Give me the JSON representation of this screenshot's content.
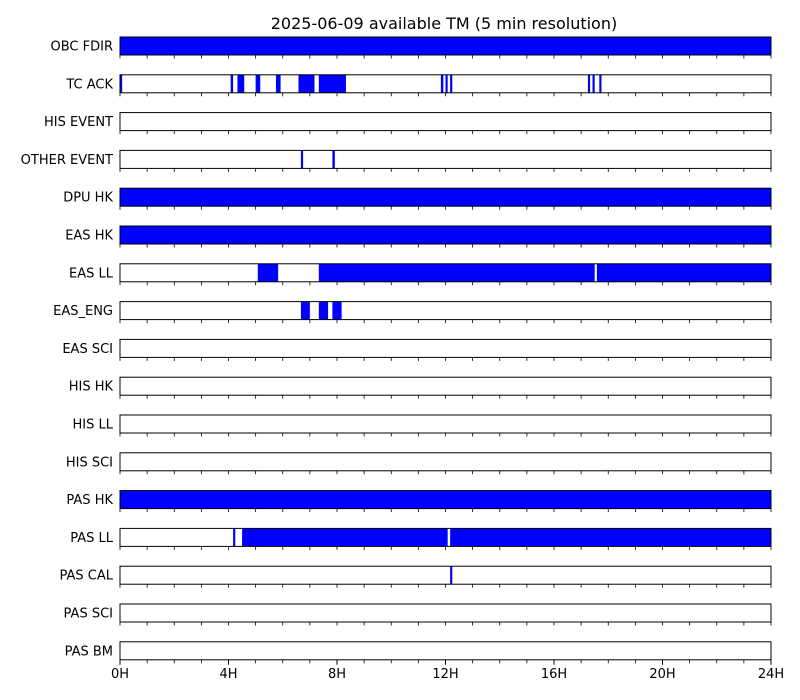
{
  "chart_data": {
    "type": "timeline",
    "title": "2025-06-09 available TM (5 min resolution)",
    "x_unit": "hours",
    "xlim": [
      0,
      24
    ],
    "x_ticks": [
      0,
      4,
      8,
      12,
      16,
      20,
      24
    ],
    "x_tick_labels": [
      "0H",
      "4H",
      "8H",
      "12H",
      "16H",
      "20H",
      "24H"
    ],
    "minor_tick_step_hours": 1,
    "fill_color": "#0000ff",
    "rows": [
      {
        "label": "OBC FDIR",
        "intervals": [
          [
            0,
            24
          ]
        ]
      },
      {
        "label": "TC ACK",
        "intervals": [
          [
            0,
            0.08
          ],
          [
            4.08,
            4.17
          ],
          [
            4.33,
            4.58
          ],
          [
            5.0,
            5.17
          ],
          [
            5.75,
            5.92
          ],
          [
            6.58,
            7.17
          ],
          [
            7.33,
            8.33
          ],
          [
            11.83,
            11.92
          ],
          [
            12.0,
            12.08
          ],
          [
            12.17,
            12.25
          ],
          [
            17.25,
            17.33
          ],
          [
            17.42,
            17.5
          ],
          [
            17.67,
            17.75
          ]
        ]
      },
      {
        "label": "HIS EVENT",
        "intervals": []
      },
      {
        "label": "OTHER EVENT",
        "intervals": [
          [
            6.67,
            6.75
          ],
          [
            7.83,
            7.92
          ]
        ]
      },
      {
        "label": "DPU HK",
        "intervals": [
          [
            0,
            24
          ]
        ]
      },
      {
        "label": "EAS HK",
        "intervals": [
          [
            0,
            24
          ]
        ]
      },
      {
        "label": "EAS LL",
        "intervals": [
          [
            5.08,
            5.83
          ],
          [
            7.33,
            17.5
          ],
          [
            17.58,
            24
          ]
        ]
      },
      {
        "label": "EAS_ENG",
        "intervals": [
          [
            6.67,
            7.0
          ],
          [
            7.33,
            7.67
          ],
          [
            7.83,
            8.17
          ]
        ]
      },
      {
        "label": "EAS SCI",
        "intervals": []
      },
      {
        "label": "HIS HK",
        "intervals": []
      },
      {
        "label": "HIS LL",
        "intervals": []
      },
      {
        "label": "HIS SCI",
        "intervals": []
      },
      {
        "label": "PAS HK",
        "intervals": [
          [
            0,
            24
          ]
        ]
      },
      {
        "label": "PAS LL",
        "intervals": [
          [
            4.17,
            4.25
          ],
          [
            4.5,
            12.08
          ],
          [
            12.17,
            24
          ]
        ]
      },
      {
        "label": "PAS CAL",
        "intervals": [
          [
            12.17,
            12.25
          ]
        ]
      },
      {
        "label": "PAS SCI",
        "intervals": []
      },
      {
        "label": "PAS BM",
        "intervals": []
      }
    ]
  }
}
